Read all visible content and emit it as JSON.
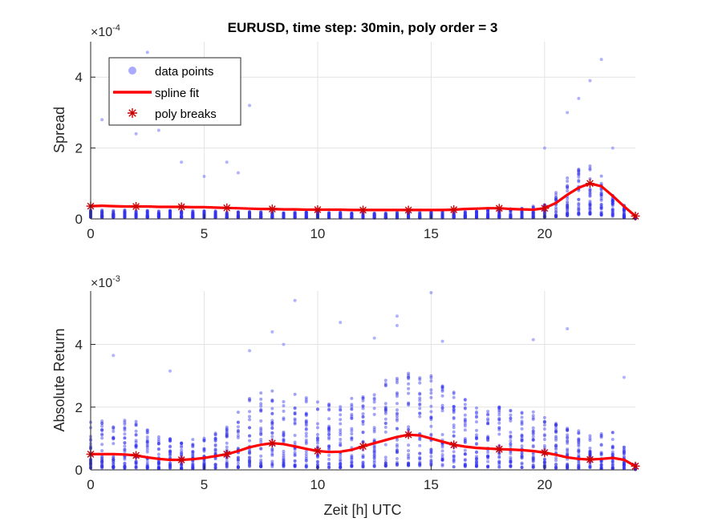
{
  "chart_data": [
    {
      "type": "scatter",
      "title": "EURUSD, time step: 30min, poly order = 3",
      "xlabel": "",
      "ylabel": "Spread",
      "y_exponent_label": "×10",
      "y_exponent": "-4",
      "xlim": [
        0,
        24
      ],
      "ylim": [
        0,
        5
      ],
      "grid": true,
      "x_ticks": [
        "0",
        "5",
        "10",
        "15",
        "20"
      ],
      "y_ticks": [
        "0",
        "2",
        "4"
      ],
      "legend": {
        "placement": "top-left",
        "entries": [
          "data points",
          "spline fit",
          "poly breaks"
        ]
      },
      "colors": {
        "points": "#4d4dff",
        "spline": "#ff0000",
        "breaks": "#cc0000"
      },
      "spline": {
        "x": [
          0,
          0.5,
          1,
          1.5,
          2,
          2.5,
          3,
          3.5,
          4,
          4.5,
          5,
          5.5,
          6,
          6.5,
          7,
          7.5,
          8,
          8.5,
          9,
          9.5,
          10,
          10.5,
          11,
          11.5,
          12,
          12.5,
          13,
          13.5,
          14,
          14.5,
          15,
          15.5,
          16,
          16.5,
          17,
          17.5,
          18,
          18.5,
          19,
          19.5,
          20,
          20.5,
          21,
          21.5,
          22,
          22.5,
          23,
          23.5,
          24
        ],
        "y": [
          0.36,
          0.37,
          0.36,
          0.35,
          0.35,
          0.35,
          0.34,
          0.34,
          0.34,
          0.33,
          0.33,
          0.32,
          0.31,
          0.3,
          0.29,
          0.28,
          0.28,
          0.27,
          0.27,
          0.26,
          0.26,
          0.26,
          0.26,
          0.25,
          0.25,
          0.25,
          0.25,
          0.25,
          0.25,
          0.25,
          0.25,
          0.25,
          0.26,
          0.28,
          0.29,
          0.3,
          0.3,
          0.28,
          0.27,
          0.26,
          0.3,
          0.45,
          0.68,
          0.88,
          1.0,
          0.92,
          0.65,
          0.35,
          0.08
        ]
      },
      "breaks": {
        "x": [
          0,
          2,
          4,
          6,
          8,
          10,
          12,
          14,
          16,
          18,
          20,
          22,
          24
        ],
        "y": [
          0.36,
          0.35,
          0.34,
          0.31,
          0.28,
          0.26,
          0.25,
          0.25,
          0.26,
          0.3,
          0.3,
          1.0,
          0.08
        ]
      },
      "point_profile": {
        "x": [
          0,
          2,
          4,
          6,
          8,
          10,
          12,
          14,
          16,
          18,
          19,
          20,
          21,
          21.5,
          22,
          22.5,
          23,
          23.5,
          24
        ],
        "mean": [
          0.35,
          0.34,
          0.33,
          0.3,
          0.27,
          0.25,
          0.24,
          0.24,
          0.25,
          0.28,
          0.28,
          0.35,
          0.75,
          0.95,
          1.0,
          0.9,
          0.6,
          0.3,
          0.08
        ],
        "spread": [
          0.22,
          0.2,
          0.2,
          0.18,
          0.17,
          0.16,
          0.16,
          0.16,
          0.17,
          0.25,
          0.28,
          0.4,
          1.1,
          1.3,
          1.4,
          1.1,
          0.7,
          0.35,
          0.05
        ]
      },
      "outliers": [
        [
          0.5,
          2.8
        ],
        [
          1.0,
          3.0
        ],
        [
          2.0,
          2.4
        ],
        [
          2.5,
          4.7
        ],
        [
          3.0,
          2.5
        ],
        [
          4.0,
          1.6
        ],
        [
          5.0,
          1.2
        ],
        [
          6.0,
          1.6
        ],
        [
          6.5,
          1.3
        ],
        [
          7.0,
          3.2
        ],
        [
          20.0,
          2.0
        ],
        [
          21.0,
          3.0
        ],
        [
          21.5,
          3.4
        ],
        [
          22.0,
          3.9
        ],
        [
          22.5,
          4.5
        ],
        [
          23.0,
          2.0
        ]
      ]
    },
    {
      "type": "scatter",
      "title": "",
      "xlabel": "Zeit [h] UTC",
      "ylabel": "Absolute Return",
      "y_exponent_label": "×10",
      "y_exponent": "-3",
      "xlim": [
        0,
        24
      ],
      "ylim": [
        0,
        5.7
      ],
      "grid": true,
      "x_ticks": [
        "0",
        "5",
        "10",
        "15",
        "20"
      ],
      "y_ticks": [
        "0",
        "2",
        "4"
      ],
      "spline": {
        "x": [
          0,
          0.5,
          1,
          1.5,
          2,
          2.5,
          3,
          3.5,
          4,
          4.5,
          5,
          5.5,
          6,
          6.5,
          7,
          7.5,
          8,
          8.5,
          9,
          9.5,
          10,
          10.5,
          11,
          11.5,
          12,
          12.5,
          13,
          13.5,
          14,
          14.5,
          15,
          15.5,
          16,
          16.5,
          17,
          17.5,
          18,
          18.5,
          19,
          19.5,
          20,
          20.5,
          21,
          21.5,
          22,
          22.5,
          23,
          23.5,
          24
        ],
        "y": [
          0.5,
          0.5,
          0.5,
          0.49,
          0.46,
          0.4,
          0.35,
          0.32,
          0.32,
          0.34,
          0.38,
          0.44,
          0.5,
          0.6,
          0.72,
          0.8,
          0.85,
          0.82,
          0.75,
          0.67,
          0.6,
          0.57,
          0.58,
          0.64,
          0.75,
          0.85,
          0.95,
          1.05,
          1.12,
          1.1,
          1.0,
          0.9,
          0.8,
          0.74,
          0.7,
          0.68,
          0.66,
          0.65,
          0.63,
          0.6,
          0.55,
          0.48,
          0.4,
          0.35,
          0.33,
          0.35,
          0.38,
          0.32,
          0.12
        ]
      },
      "breaks": {
        "x": [
          0,
          2,
          4,
          6,
          8,
          10,
          12,
          14,
          16,
          18,
          20,
          22,
          24
        ],
        "y": [
          0.5,
          0.46,
          0.32,
          0.5,
          0.85,
          0.6,
          0.75,
          1.12,
          0.8,
          0.66,
          0.55,
          0.33,
          0.12
        ]
      },
      "point_profile": {
        "x": [
          0,
          1,
          2,
          3,
          4,
          5,
          6,
          7,
          8,
          9,
          10,
          11,
          12,
          13,
          14,
          15,
          16,
          17,
          18,
          19,
          20,
          21,
          22,
          23,
          24
        ],
        "mean": [
          0.5,
          0.5,
          0.46,
          0.35,
          0.32,
          0.38,
          0.5,
          0.72,
          0.85,
          0.75,
          0.6,
          0.58,
          0.75,
          0.95,
          1.12,
          1.0,
          0.8,
          0.7,
          0.66,
          0.63,
          0.55,
          0.4,
          0.33,
          0.38,
          0.12
        ],
        "spread": [
          1.5,
          1.6,
          1.5,
          1.1,
          0.9,
          1.0,
          1.5,
          2.2,
          2.6,
          2.4,
          2.1,
          2.0,
          2.4,
          2.8,
          3.0,
          2.9,
          2.4,
          2.1,
          2.0,
          1.9,
          1.7,
          1.3,
          1.1,
          1.2,
          0.2
        ]
      },
      "outliers": [
        [
          1.0,
          3.65
        ],
        [
          3.5,
          3.15
        ],
        [
          7.0,
          3.8
        ],
        [
          8.0,
          4.4
        ],
        [
          8.5,
          4.0
        ],
        [
          9.0,
          5.4
        ],
        [
          11.0,
          4.7
        ],
        [
          12.5,
          4.2
        ],
        [
          13.5,
          4.6
        ],
        [
          13.5,
          4.9
        ],
        [
          15.0,
          5.65
        ],
        [
          15.5,
          4.1
        ],
        [
          19.5,
          4.15
        ],
        [
          21.0,
          4.5
        ],
        [
          23.5,
          2.95
        ]
      ]
    }
  ]
}
